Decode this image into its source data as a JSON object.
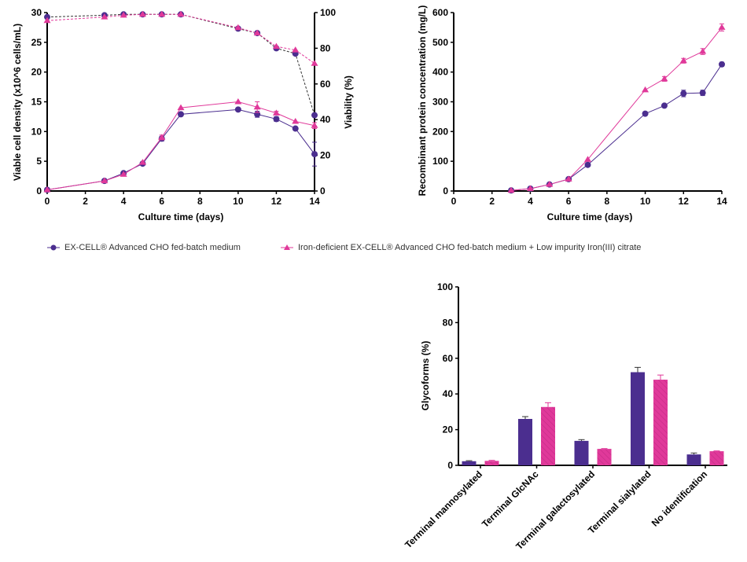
{
  "colors": {
    "series_a": "#4b2e8f",
    "series_b": "#e0399a",
    "viability_a_line": "#333333",
    "axis": "#000000"
  },
  "legend": {
    "items": [
      {
        "label": "EX-CELL® Advanced CHO fed-batch medium",
        "marker": "circle",
        "color": "#4b2e8f"
      },
      {
        "label": "Iron-deficient EX-CELL® Advanced CHO fed-batch medium + Low impurity Iron(III) citrate",
        "marker": "triangle",
        "color": "#e0399a"
      }
    ]
  },
  "chart_data": [
    {
      "type": "line",
      "title": "",
      "xlabel": "Culture time (days)",
      "ylabel": "Viable cell density (x10^6 cells/mL)",
      "y2label": "Viability (%)",
      "xlim": [
        0,
        14
      ],
      "ylim": [
        0,
        30
      ],
      "y2lim": [
        0,
        100
      ],
      "xticks": [
        "0",
        "2",
        "4",
        "6",
        "8",
        "10",
        "12",
        "14"
      ],
      "yticks": [
        "0",
        "5",
        "10",
        "15",
        "20",
        "25",
        "30"
      ],
      "y2ticks": [
        "0",
        "20",
        "40",
        "60",
        "80",
        "100"
      ],
      "grid": false,
      "x": [
        0,
        3,
        4,
        5,
        6,
        7,
        10,
        11,
        12,
        13,
        14
      ],
      "series": [
        {
          "name": "EX-CELL® Advanced CHO fed-batch medium — VCD",
          "axis": "left",
          "style": "solid",
          "marker": "circle",
          "values": [
            0.2,
            1.7,
            3.0,
            4.6,
            8.8,
            12.9,
            13.7,
            12.9,
            12.1,
            10.5,
            6.2
          ],
          "errors": [
            0.1,
            0.2,
            0.2,
            0.2,
            0.4,
            0.2,
            0.2,
            0.5,
            0.4,
            0.2,
            2.0
          ]
        },
        {
          "name": "Iron-deficient EX-CELL® + Low impurity Iron(III) citrate — VCD",
          "axis": "left",
          "style": "solid",
          "marker": "triangle",
          "values": [
            0.2,
            1.7,
            2.8,
            4.8,
            9.0,
            14.0,
            15.0,
            14.1,
            13.1,
            11.7,
            11.0
          ],
          "errors": [
            0.1,
            0.2,
            0.2,
            0.2,
            0.4,
            0.2,
            0.2,
            0.9,
            0.3,
            0.2,
            0.5
          ]
        },
        {
          "name": "EX-CELL® Advanced CHO fed-batch medium — Viability",
          "axis": "right",
          "style": "dashed",
          "marker": "circle",
          "values": [
            97.5,
            98.5,
            99.0,
            99.0,
            99.0,
            99.0,
            91.0,
            88.5,
            80.0,
            77.0,
            42.5
          ],
          "errors": [
            0,
            0,
            0,
            0,
            0,
            0,
            0,
            0,
            0,
            0,
            0
          ]
        },
        {
          "name": "Iron-deficient EX-CELL® + Low impurity Iron(III) citrate — Viability",
          "axis": "right",
          "style": "dashed",
          "marker": "triangle",
          "values": [
            95.5,
            97.5,
            98.5,
            99.0,
            99.0,
            99.0,
            91.5,
            88.5,
            81.0,
            79.0,
            71.5
          ],
          "errors": [
            0,
            0,
            0,
            0,
            0,
            0,
            0,
            0,
            0,
            0,
            0
          ]
        }
      ]
    },
    {
      "type": "line",
      "title": "",
      "xlabel": "Culture time (days)",
      "ylabel": "Recombinant protein concentration (mg/L)",
      "xlim": [
        0,
        14
      ],
      "ylim": [
        0,
        600
      ],
      "xticks": [
        "0",
        "2",
        "4",
        "6",
        "8",
        "10",
        "12",
        "14"
      ],
      "yticks": [
        "0",
        "100",
        "200",
        "300",
        "400",
        "500",
        "600"
      ],
      "grid": false,
      "x": [
        3,
        4,
        5,
        6,
        7,
        10,
        11,
        12,
        13,
        14
      ],
      "series": [
        {
          "name": "EX-CELL® Advanced CHO fed-batch medium",
          "marker": "circle",
          "values": [
            2,
            8,
            22,
            40,
            88,
            260,
            287,
            328,
            330,
            426
          ],
          "errors": [
            1,
            1,
            2,
            2,
            3,
            4,
            4,
            11,
            9,
            7
          ]
        },
        {
          "name": "Iron-deficient EX-CELL® + Low impurity Iron(III) citrate",
          "marker": "triangle",
          "values": [
            2,
            8,
            22,
            40,
            106,
            340,
            377,
            438,
            469,
            550
          ],
          "errors": [
            1,
            1,
            2,
            2,
            3,
            4,
            8,
            8,
            10,
            12
          ]
        }
      ]
    },
    {
      "type": "bar",
      "title": "",
      "xlabel": "",
      "ylabel": "Glycoforms (%)",
      "ylim": [
        0,
        100
      ],
      "yticks": [
        "0",
        "20",
        "40",
        "60",
        "80",
        "100"
      ],
      "grid": false,
      "categories": [
        "Terminal mannosylated",
        "Terminal GlcNAc",
        "Terminal galactosylated",
        "Terminal sialylated",
        "No identification"
      ],
      "series": [
        {
          "name": "EX-CELL® Advanced CHO fed-batch medium",
          "fill": "solid",
          "values": [
            2.3,
            26.0,
            13.7,
            52.2,
            6.1
          ],
          "errors": [
            0.3,
            1.3,
            0.7,
            2.7,
            0.8
          ]
        },
        {
          "name": "Iron-deficient EX-CELL® + Low impurity Iron(III) citrate",
          "fill": "hatched",
          "values": [
            2.5,
            32.7,
            9.2,
            48.0,
            7.9
          ],
          "errors": [
            0.3,
            2.4,
            0.2,
            2.6,
            0.2
          ]
        }
      ]
    }
  ]
}
